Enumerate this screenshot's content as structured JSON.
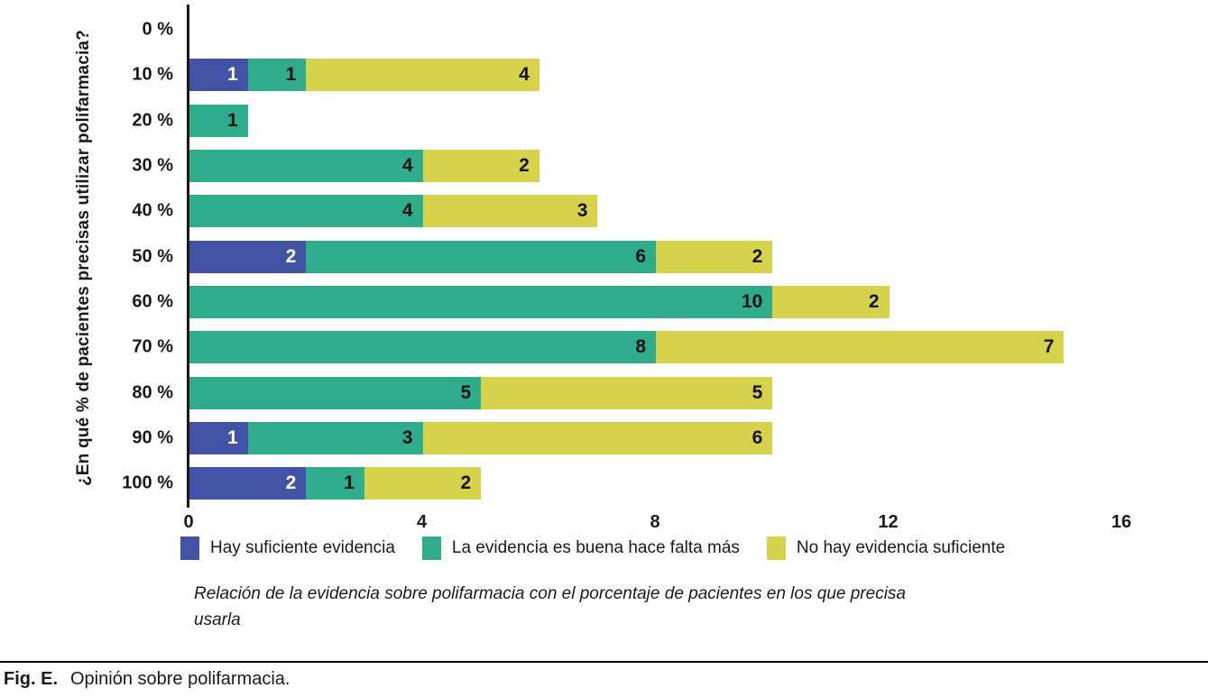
{
  "chart_data": {
    "type": "bar",
    "orientation": "horizontal",
    "stacked": true,
    "title": "",
    "ylabel": "¿En qué % de pacientes precisas utilizar polifarmacia?",
    "xlabel": "",
    "categories": [
      "0 %",
      "10 %",
      "20 %",
      "30 %",
      "40 %",
      "50 %",
      "60 %",
      "70 %",
      "80 %",
      "90 %",
      "100 %"
    ],
    "series": [
      {
        "name": "Hay suficiente evidencia",
        "color": "#4253a5",
        "label_color": "#ffffff",
        "values": [
          0,
          1,
          0,
          0,
          0,
          2,
          0,
          0,
          0,
          1,
          2
        ]
      },
      {
        "name": "La evidencia es buena hace falta más",
        "color": "#2fac8c",
        "label_color": "#111111",
        "values": [
          0,
          1,
          1,
          4,
          4,
          6,
          10,
          8,
          5,
          3,
          1
        ]
      },
      {
        "name": "No hay evidencia suficiente",
        "color": "#d7d24b",
        "label_color": "#111111",
        "values": [
          0,
          4,
          0,
          2,
          3,
          2,
          2,
          7,
          5,
          6,
          2
        ]
      }
    ],
    "xlim": [
      0,
      16
    ],
    "x_ticks": [
      "0",
      "4",
      "8",
      "12",
      "16"
    ],
    "legend_position": "bottom",
    "grid": false,
    "value_labels": true
  },
  "chart_caption": {
    "line1": "Relación de la evidencia sobre polifarmacia con el porcentaje de pacientes en los que precisa",
    "line2": "usarla"
  },
  "figure": {
    "caption_label": "Fig. E.",
    "caption_text": "Opinión sobre polifarmacia."
  },
  "colors": {
    "axis": "#1a1a1a",
    "background": "#ffffff"
  }
}
